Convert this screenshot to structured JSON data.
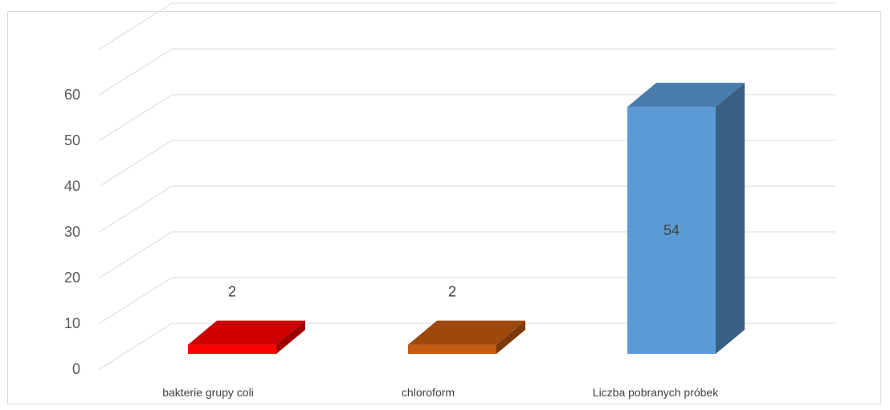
{
  "chart_data": {
    "type": "bar",
    "categories": [
      "bakterie grupy coli",
      "chloroform",
      "Liczba  pobranych próbek"
    ],
    "values": [
      2,
      2,
      54
    ],
    "data_labels": [
      "2",
      "2",
      "54"
    ],
    "colors": [
      "#ff0000",
      "#c55a11",
      "#5b9bd5"
    ],
    "ylim": [
      0,
      60
    ],
    "yticks": [
      0,
      10,
      20,
      30,
      40,
      50,
      60
    ],
    "ytick_labels": [
      "0",
      "10",
      "20",
      "30",
      "40",
      "50",
      "60"
    ],
    "grid": true,
    "style": "3d-column",
    "legend": "none"
  }
}
